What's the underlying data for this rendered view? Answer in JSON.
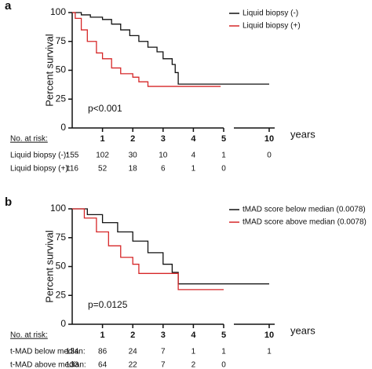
{
  "chart_data": [
    {
      "type": "step",
      "panel_label": "a",
      "ylabel": "Percent survival",
      "xlabel": "years",
      "annotation": "p<0.001",
      "xlim": [
        0,
        10
      ],
      "xbreak": [
        5,
        9
      ],
      "xticks": [
        1,
        2,
        3,
        4,
        5,
        10
      ],
      "ylim": [
        0,
        100
      ],
      "yticks": [
        0,
        25,
        50,
        75,
        100
      ],
      "legend": "upper right",
      "series": [
        {
          "name": "Liquid biopsy (-)",
          "color": "#111111",
          "x": [
            0,
            0.3,
            0.6,
            1,
            1.3,
            1.6,
            1.9,
            2.2,
            2.5,
            2.8,
            3.0,
            3.3,
            3.4,
            3.5,
            10
          ],
          "values": [
            100,
            98,
            96,
            94,
            90,
            85,
            80,
            75,
            70,
            66,
            60,
            55,
            48,
            38,
            38
          ]
        },
        {
          "name": "Liquid biopsy (+)",
          "color": "#d62728",
          "x": [
            0,
            0.1,
            0.3,
            0.5,
            0.8,
            1,
            1.3,
            1.6,
            2,
            2.2,
            2.5,
            4.9
          ],
          "values": [
            100,
            95,
            85,
            75,
            65,
            60,
            52,
            47,
            44,
            40,
            36,
            36
          ]
        }
      ],
      "risk_table": {
        "title": "No. at risk:",
        "rows": [
          {
            "label": "Liquid biopsy (-):",
            "values": [
              155,
              102,
              30,
              10,
              4,
              1,
              0
            ]
          },
          {
            "label": "Liquid biopsy (+):",
            "values": [
              116,
              52,
              18,
              6,
              1,
              0,
              null
            ]
          }
        ]
      }
    },
    {
      "type": "step",
      "panel_label": "b",
      "ylabel": "Percent survival",
      "xlabel": "years",
      "annotation": "p=0.0125",
      "xlim": [
        0,
        10
      ],
      "xbreak": [
        5,
        9
      ],
      "xticks": [
        1,
        2,
        3,
        4,
        5,
        10
      ],
      "ylim": [
        0,
        100
      ],
      "yticks": [
        0,
        25,
        50,
        75,
        100
      ],
      "legend": "upper right",
      "series": [
        {
          "name": "tMAD score below median (0.0078)",
          "color": "#111111",
          "x": [
            0,
            0.5,
            1,
            1.5,
            2,
            2.5,
            3,
            3.3,
            3.5,
            10
          ],
          "values": [
            100,
            95,
            88,
            80,
            72,
            62,
            52,
            45,
            35,
            35
          ]
        },
        {
          "name": "tMAD score above median (0.0078)",
          "color": "#d62728",
          "x": [
            0,
            0.4,
            0.8,
            1.2,
            1.6,
            2,
            2.2,
            3.4,
            3.5,
            5
          ],
          "values": [
            100,
            92,
            80,
            68,
            58,
            52,
            44,
            44,
            30,
            30
          ]
        }
      ],
      "risk_table": {
        "title": "No. at risk:",
        "rows": [
          {
            "label": "t-MAD below median:",
            "values": [
              134,
              86,
              24,
              7,
              1,
              1,
              1
            ]
          },
          {
            "label": "t-MAD above median:",
            "values": [
              133,
              64,
              22,
              7,
              2,
              0,
              null
            ]
          }
        ]
      }
    }
  ]
}
